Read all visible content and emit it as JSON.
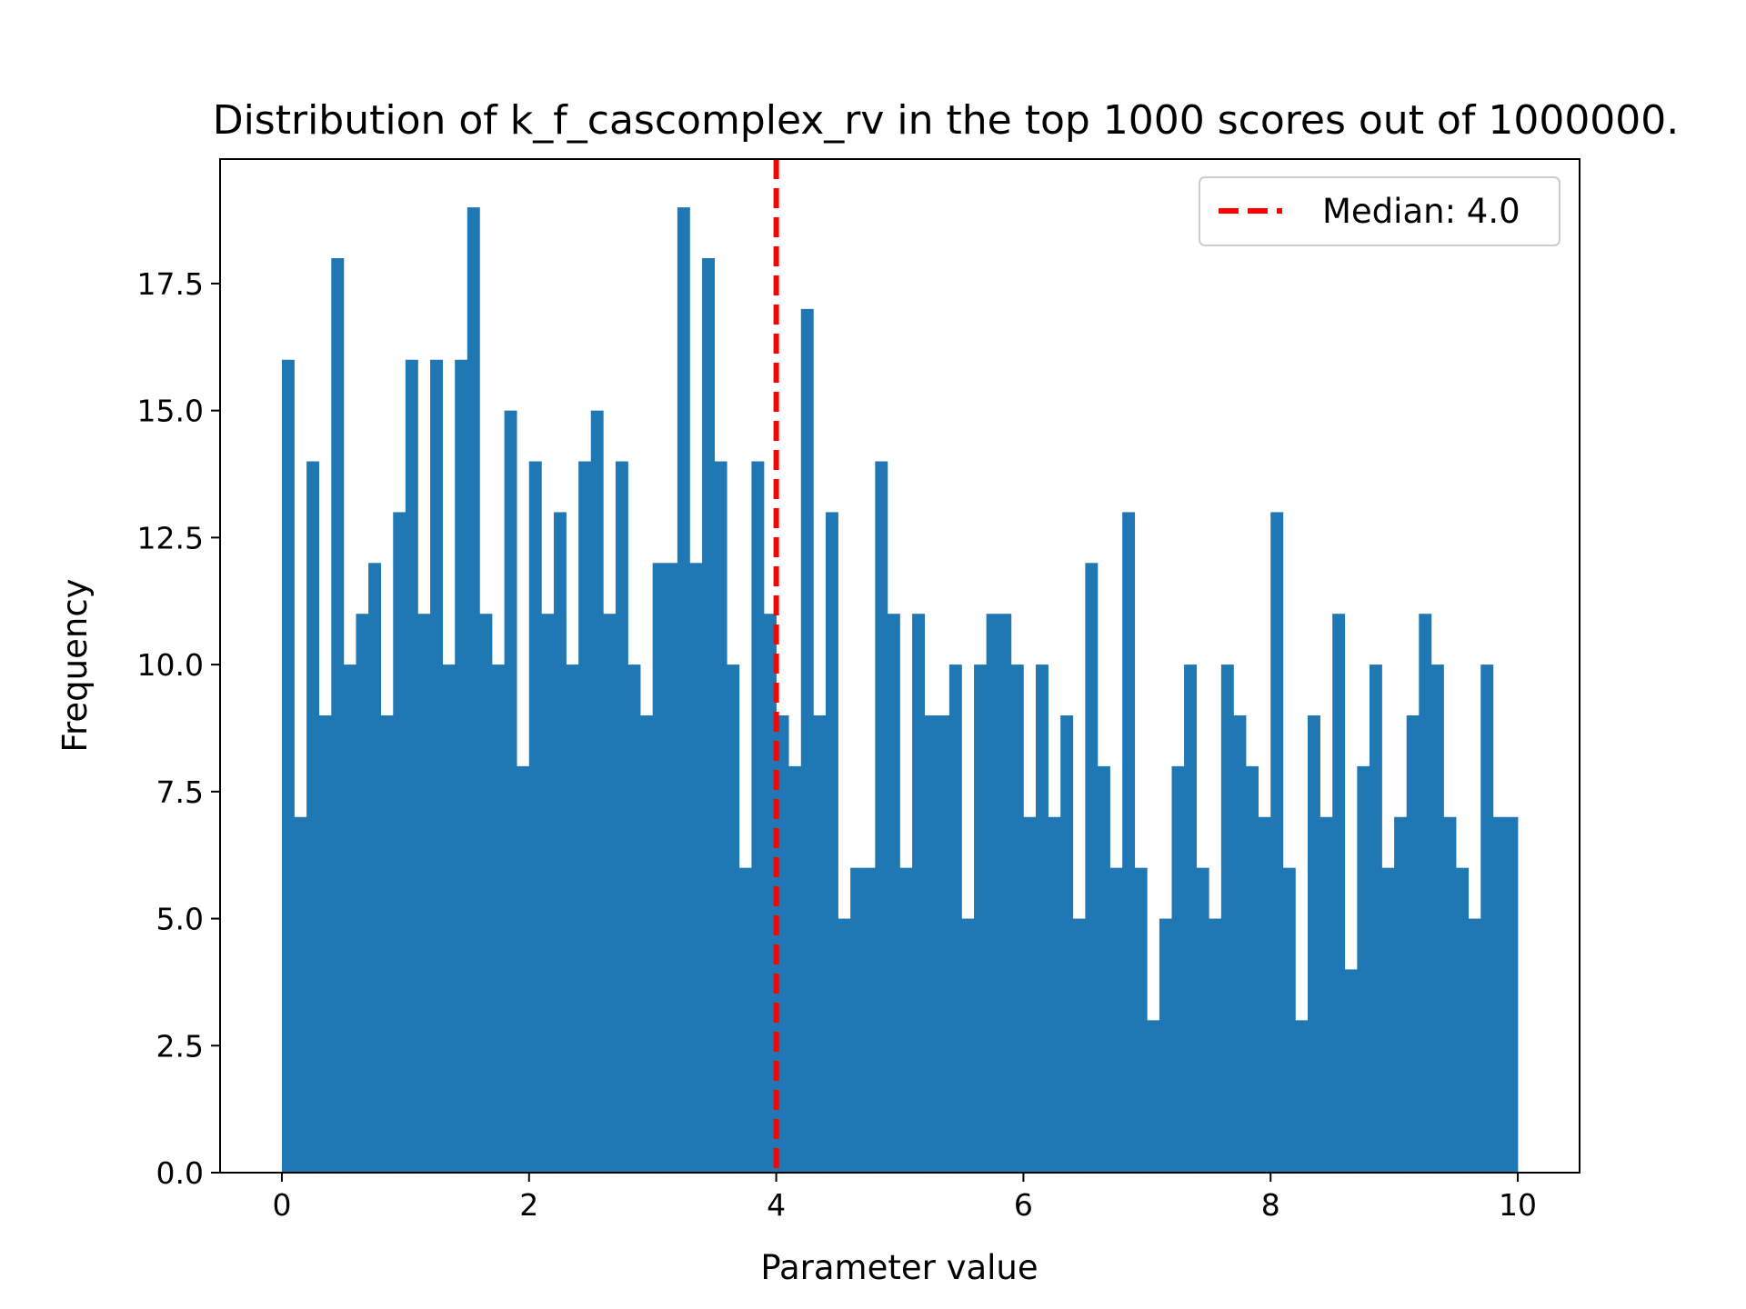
{
  "chart_data": {
    "type": "bar",
    "subtype": "histogram",
    "title": "Distribution of k_f_cascomplex_rv in the top 1000 scores out of 1000000.",
    "xlabel": "Parameter value",
    "ylabel": "Frequency",
    "xlim": [
      -0.5,
      10.5
    ],
    "ylim": [
      0,
      19.95
    ],
    "x_ticks": [
      0,
      2,
      4,
      6,
      8,
      10
    ],
    "x_tick_labels": [
      "0",
      "2",
      "4",
      "6",
      "8",
      "10"
    ],
    "y_ticks": [
      0,
      2.5,
      5,
      7.5,
      10,
      12.5,
      15,
      17.5
    ],
    "y_tick_labels": [
      "0.0",
      "2.5",
      "5.0",
      "7.5",
      "10.0",
      "12.5",
      "15.0",
      "17.5"
    ],
    "bin_range": [
      0,
      10
    ],
    "bin_count": 100,
    "values": [
      16,
      7,
      14,
      9,
      18,
      10,
      11,
      12,
      9,
      13,
      16,
      11,
      16,
      10,
      16,
      19,
      11,
      10,
      15,
      8,
      14,
      11,
      13,
      10,
      14,
      15,
      11,
      14,
      10,
      9,
      12,
      12,
      19,
      12,
      18,
      14,
      10,
      6,
      14,
      11,
      9,
      8,
      17,
      9,
      13,
      5,
      6,
      6,
      14,
      11,
      6,
      11,
      9,
      9,
      10,
      5,
      10,
      11,
      11,
      10,
      7,
      10,
      7,
      9,
      5,
      12,
      8,
      6,
      13,
      6,
      3,
      5,
      8,
      10,
      6,
      5,
      10,
      9,
      8,
      7,
      13,
      6,
      3,
      9,
      7,
      11,
      4,
      8,
      10,
      6,
      7,
      9,
      11,
      10,
      7,
      6,
      5,
      10,
      7,
      7
    ],
    "bar_color": "#1f77b4",
    "median_line": {
      "x": 4.0,
      "label": "Median: 4.0",
      "color": "#ff0000",
      "style": "dashed"
    },
    "legend": {
      "position": "upper right",
      "entries": [
        "Median: 4.0"
      ]
    },
    "grid": false
  }
}
